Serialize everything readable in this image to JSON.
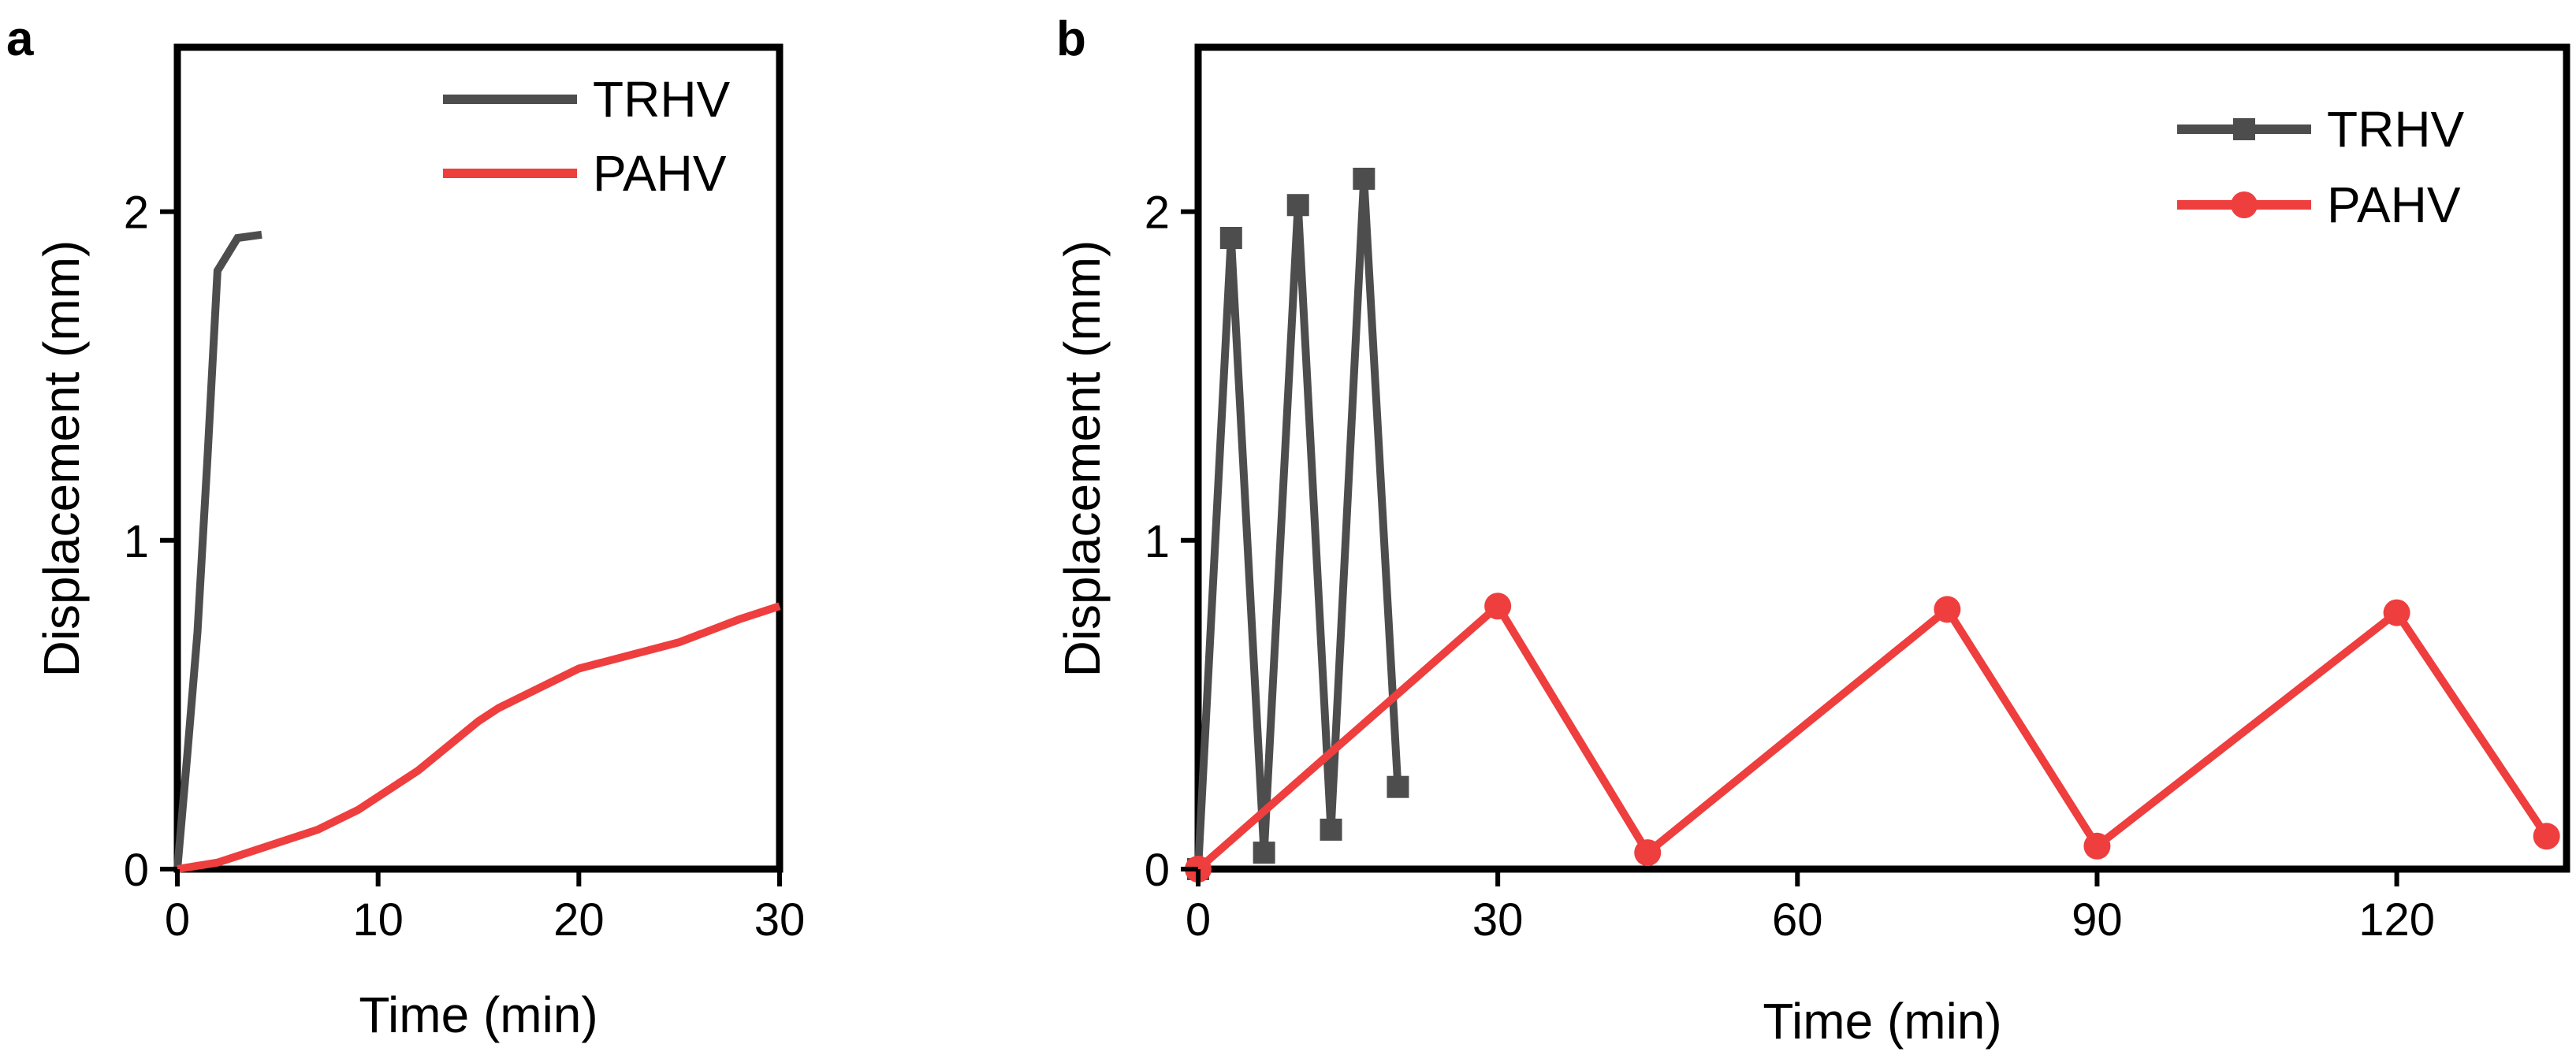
{
  "colors": {
    "trhv": "#4d4d4d",
    "pahv": "#ee3e3e",
    "axis": "#000000"
  },
  "chart_data": [
    {
      "panel": "a",
      "type": "line",
      "xlabel": "Time (min)",
      "ylabel": "Displacement (mm)",
      "xlim": [
        0,
        30
      ],
      "ylim": [
        0,
        2.5
      ],
      "xticks": [
        0,
        10,
        20,
        30
      ],
      "yticks": [
        0,
        1,
        2
      ],
      "grid": false,
      "legend": "top-right",
      "markers": false,
      "series": [
        {
          "name": "TRHV",
          "color_key": "trhv",
          "x": [
            0,
            0.5,
            1,
            1.5,
            2,
            3,
            4.2
          ],
          "y": [
            0,
            0.35,
            0.72,
            1.25,
            1.82,
            1.92,
            1.93
          ]
        },
        {
          "name": "PAHV",
          "color_key": "pahv",
          "x": [
            0,
            2,
            4,
            7,
            9,
            12,
            15,
            16,
            18,
            20,
            25,
            28,
            30
          ],
          "y": [
            0,
            0.02,
            0.06,
            0.12,
            0.18,
            0.3,
            0.45,
            0.49,
            0.55,
            0.61,
            0.69,
            0.76,
            0.8
          ]
        }
      ]
    },
    {
      "panel": "b",
      "type": "line",
      "xlabel": "Time (min)",
      "ylabel": "Displacement (mm)",
      "xlim": [
        0,
        137
      ],
      "ylim": [
        0,
        2.5
      ],
      "xticks": [
        0,
        30,
        60,
        90,
        120
      ],
      "yticks": [
        0,
        1,
        2
      ],
      "grid": false,
      "legend": "top-right",
      "markers": true,
      "series": [
        {
          "name": "TRHV",
          "color_key": "trhv",
          "marker": "square",
          "x": [
            0,
            3.3,
            6.6,
            10,
            13.3,
            16.6,
            20
          ],
          "y": [
            0,
            1.92,
            0.05,
            2.02,
            0.12,
            2.1,
            0.25
          ]
        },
        {
          "name": "PAHV",
          "color_key": "pahv",
          "marker": "circle",
          "x": [
            0,
            30,
            45,
            75,
            90,
            120,
            135
          ],
          "y": [
            0,
            0.8,
            0.05,
            0.79,
            0.07,
            0.78,
            0.1
          ]
        }
      ]
    }
  ]
}
